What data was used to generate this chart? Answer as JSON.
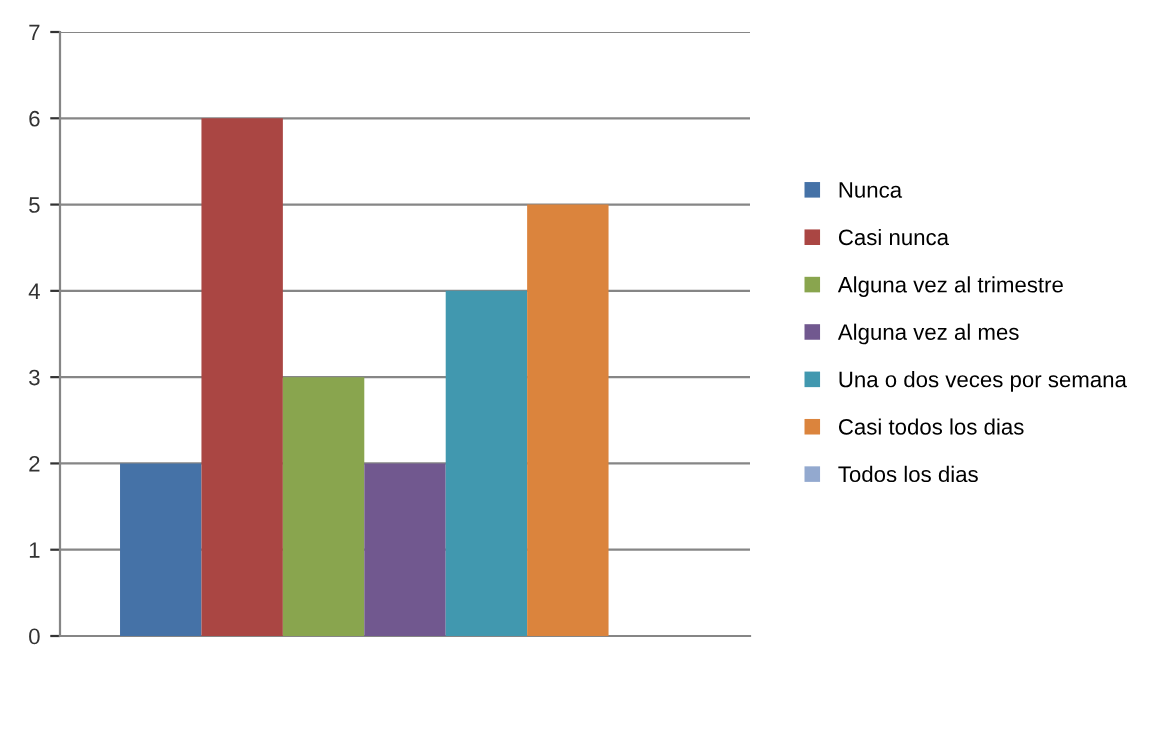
{
  "chart_data": {
    "type": "bar",
    "categories": [
      null
    ],
    "series": [
      {
        "name": "Nunca",
        "color": "#4572a7",
        "values": [
          2
        ]
      },
      {
        "name": "Casi nunca",
        "color": "#aa4643",
        "values": [
          6
        ]
      },
      {
        "name": "Alguna vez al trimestre",
        "color": "#89a54e",
        "values": [
          3
        ]
      },
      {
        "name": "Alguna vez al mes",
        "color": "#71588f",
        "values": [
          2
        ]
      },
      {
        "name": "Una o dos veces por semana",
        "color": "#4198af",
        "values": [
          4
        ]
      },
      {
        "name": "Casi todos los dias",
        "color": "#db843d",
        "values": [
          5
        ]
      },
      {
        "name": "Todos los dias",
        "color": "#93a9cf",
        "values": [
          0
        ]
      }
    ],
    "ylim": [
      0,
      7
    ],
    "yticks": [
      0,
      1,
      2,
      3,
      4,
      5,
      6,
      7
    ],
    "grid": "y",
    "legend": "right"
  }
}
